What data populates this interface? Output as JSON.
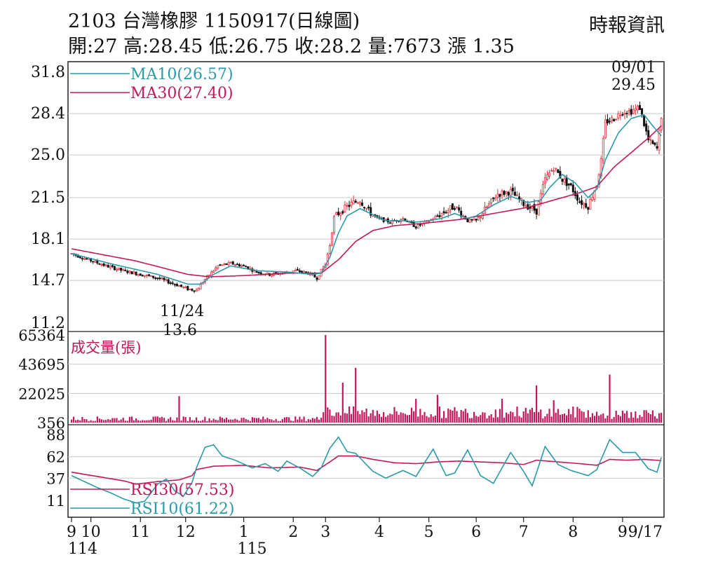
{
  "header": {
    "title": "2103  台灣橡膠 1150917(日線圖)",
    "source": "時報資訊",
    "stats": "開:27 高:28.45 低:26.75 收:28.2 量:7673 漲 1.35"
  },
  "chart_data": [
    {
      "type": "candlestick",
      "panel": "price",
      "yticks": [
        "31.8",
        "28.4",
        "25.0",
        "21.5",
        "18.1",
        "14.7",
        "11.2"
      ],
      "ylim": [
        11.2,
        31.8
      ],
      "grid": true,
      "legend": [
        {
          "name": "MA10(26.57)",
          "color": "#2a9aa8"
        },
        {
          "name": "MA30(27.40)",
          "color": "#c2185b"
        }
      ],
      "annotations": [
        {
          "date": "11/24",
          "value": "13.6",
          "date_label": "11/24",
          "value_label": "13.6"
        },
        {
          "date": "09/01",
          "value": "29.45",
          "date_label": "09/01",
          "value_label": "29.45"
        }
      ],
      "colors": {
        "up": "#e0303a",
        "down": "#111111",
        "ma10": "#2a9aa8",
        "ma30": "#c2185b"
      },
      "anchors": {
        "price": [
          [
            0,
            16.9
          ],
          [
            8,
            16.4
          ],
          [
            16,
            15.9
          ],
          [
            24,
            15.5
          ],
          [
            32,
            15.2
          ],
          [
            40,
            14.9
          ],
          [
            48,
            14.4
          ],
          [
            54,
            14.0
          ],
          [
            58,
            13.9
          ],
          [
            62,
            14.8
          ],
          [
            68,
            15.9
          ],
          [
            74,
            16.1
          ],
          [
            80,
            15.9
          ],
          [
            86,
            15.4
          ],
          [
            92,
            15.2
          ],
          [
            98,
            15.3
          ],
          [
            104,
            15.5
          ],
          [
            110,
            15.3
          ],
          [
            114,
            14.9
          ],
          [
            118,
            16.1
          ],
          [
            120,
            17.6
          ],
          [
            122,
            19.9
          ],
          [
            126,
            20.5
          ],
          [
            130,
            21.0
          ],
          [
            134,
            21.3
          ],
          [
            138,
            20.4
          ],
          [
            142,
            19.8
          ],
          [
            148,
            19.5
          ],
          [
            154,
            19.8
          ],
          [
            160,
            19.1
          ],
          [
            166,
            19.6
          ],
          [
            172,
            20.2
          ],
          [
            178,
            20.8
          ],
          [
            184,
            19.6
          ],
          [
            188,
            19.6
          ],
          [
            192,
            20.5
          ],
          [
            198,
            21.8
          ],
          [
            204,
            22.0
          ],
          [
            210,
            21.0
          ],
          [
            216,
            20.4
          ],
          [
            220,
            23.0
          ],
          [
            224,
            24.0
          ],
          [
            228,
            23.0
          ],
          [
            232,
            22.4
          ],
          [
            236,
            21.2
          ],
          [
            240,
            20.8
          ],
          [
            244,
            22.6
          ],
          [
            246,
            24.5
          ],
          [
            248,
            27.7
          ],
          [
            252,
            28.0
          ],
          [
            256,
            28.6
          ],
          [
            260,
            28.6
          ],
          [
            264,
            28.9
          ],
          [
            268,
            26.2
          ],
          [
            272,
            25.5
          ],
          [
            274,
            28.2
          ]
        ],
        "ma10": [
          [
            0,
            16.9
          ],
          [
            20,
            16.0
          ],
          [
            40,
            15.2
          ],
          [
            54,
            14.4
          ],
          [
            60,
            14.4
          ],
          [
            66,
            15.2
          ],
          [
            74,
            15.9
          ],
          [
            86,
            15.5
          ],
          [
            100,
            15.4
          ],
          [
            112,
            15.2
          ],
          [
            116,
            15.3
          ],
          [
            120,
            16.6
          ],
          [
            124,
            18.6
          ],
          [
            128,
            20.0
          ],
          [
            134,
            20.6
          ],
          [
            140,
            20.1
          ],
          [
            146,
            19.6
          ],
          [
            154,
            19.6
          ],
          [
            160,
            19.5
          ],
          [
            166,
            19.6
          ],
          [
            172,
            19.8
          ],
          [
            178,
            20.2
          ],
          [
            184,
            19.8
          ],
          [
            188,
            20.0
          ],
          [
            196,
            20.9
          ],
          [
            204,
            21.6
          ],
          [
            212,
            21.1
          ],
          [
            218,
            21.3
          ],
          [
            222,
            22.3
          ],
          [
            228,
            23.4
          ],
          [
            234,
            22.7
          ],
          [
            240,
            21.5
          ],
          [
            244,
            22.2
          ],
          [
            248,
            24.6
          ],
          [
            254,
            26.8
          ],
          [
            260,
            28.0
          ],
          [
            266,
            28.3
          ],
          [
            270,
            27.4
          ],
          [
            274,
            26.57
          ]
        ],
        "ma30": [
          [
            0,
            17.3
          ],
          [
            30,
            16.3
          ],
          [
            54,
            15.2
          ],
          [
            64,
            15.0
          ],
          [
            80,
            15.1
          ],
          [
            100,
            15.3
          ],
          [
            116,
            15.3
          ],
          [
            124,
            16.4
          ],
          [
            132,
            17.9
          ],
          [
            140,
            18.8
          ],
          [
            150,
            19.2
          ],
          [
            164,
            19.4
          ],
          [
            180,
            19.7
          ],
          [
            196,
            20.2
          ],
          [
            212,
            20.7
          ],
          [
            224,
            21.3
          ],
          [
            236,
            21.9
          ],
          [
            244,
            22.4
          ],
          [
            252,
            24.0
          ],
          [
            260,
            25.2
          ],
          [
            268,
            26.4
          ],
          [
            274,
            27.4
          ]
        ]
      }
    },
    {
      "type": "bar",
      "panel": "volume",
      "label": "成交量(張)",
      "yticks": [
        "65364",
        "43695",
        "22025",
        "356"
      ],
      "ylim": [
        356,
        65364
      ],
      "peaks": [
        [
          50,
          20000
        ],
        [
          118,
          65364
        ],
        [
          126,
          30000
        ],
        [
          132,
          41000
        ],
        [
          160,
          18000
        ],
        [
          170,
          21000
        ],
        [
          200,
          18000
        ],
        [
          216,
          28000
        ],
        [
          224,
          17000
        ],
        [
          250,
          36000
        ],
        [
          274,
          7673
        ]
      ],
      "color": "#c2185b"
    },
    {
      "type": "line",
      "panel": "rsi",
      "yticks": [
        "88",
        "62",
        "37",
        "11"
      ],
      "ylim": [
        0,
        100
      ],
      "series": [
        {
          "name": "RSI30(57.53)",
          "color": "#c2185b",
          "points": [
            [
              0,
              44
            ],
            [
              12,
              39
            ],
            [
              24,
              34
            ],
            [
              30,
              30
            ],
            [
              40,
              33
            ],
            [
              50,
              35
            ],
            [
              56,
              40
            ],
            [
              58,
              47
            ],
            [
              66,
              51
            ],
            [
              80,
              52
            ],
            [
              92,
              49
            ],
            [
              106,
              50
            ],
            [
              114,
              46
            ],
            [
              120,
              56
            ],
            [
              124,
              63
            ],
            [
              132,
              63
            ],
            [
              140,
              59
            ],
            [
              150,
              55
            ],
            [
              160,
              54
            ],
            [
              170,
              56
            ],
            [
              180,
              57
            ],
            [
              190,
              56
            ],
            [
              200,
              55
            ],
            [
              210,
              53
            ],
            [
              216,
              58
            ],
            [
              226,
              56
            ],
            [
              236,
              54
            ],
            [
              244,
              52
            ],
            [
              250,
              59
            ],
            [
              258,
              58
            ],
            [
              266,
              59
            ],
            [
              274,
              57.53
            ]
          ]
        },
        {
          "name": "RSI10(61.22)",
          "color": "#2a9aa8",
          "points": [
            [
              0,
              40
            ],
            [
              6,
              33
            ],
            [
              12,
              26
            ],
            [
              18,
              20
            ],
            [
              24,
              13
            ],
            [
              30,
              8
            ],
            [
              34,
              10
            ],
            [
              40,
              30
            ],
            [
              44,
              36
            ],
            [
              48,
              22
            ],
            [
              52,
              16
            ],
            [
              56,
              32
            ],
            [
              58,
              49
            ],
            [
              62,
              73
            ],
            [
              66,
              76
            ],
            [
              70,
              63
            ],
            [
              76,
              58
            ],
            [
              84,
              49
            ],
            [
              90,
              54
            ],
            [
              96,
              45
            ],
            [
              100,
              57
            ],
            [
              106,
              49
            ],
            [
              112,
              39
            ],
            [
              116,
              49
            ],
            [
              120,
              72
            ],
            [
              124,
              85
            ],
            [
              128,
              68
            ],
            [
              132,
              66
            ],
            [
              140,
              45
            ],
            [
              146,
              37
            ],
            [
              154,
              46
            ],
            [
              160,
              39
            ],
            [
              168,
              71
            ],
            [
              174,
              40
            ],
            [
              178,
              43
            ],
            [
              184,
              70
            ],
            [
              190,
              40
            ],
            [
              196,
              31
            ],
            [
              204,
              67
            ],
            [
              210,
              45
            ],
            [
              214,
              28
            ],
            [
              220,
              74
            ],
            [
              226,
              53
            ],
            [
              232,
              46
            ],
            [
              236,
              43
            ],
            [
              240,
              40
            ],
            [
              244,
              47
            ],
            [
              250,
              82
            ],
            [
              256,
              67
            ],
            [
              262,
              67
            ],
            [
              268,
              48
            ],
            [
              272,
              44
            ],
            [
              274,
              61.22
            ]
          ]
        }
      ]
    }
  ],
  "xaxis": {
    "ticks": [
      {
        "label": "9",
        "idx": 0
      },
      {
        "label": "10",
        "idx": 9
      },
      {
        "label": "11",
        "idx": 32
      },
      {
        "label": "12",
        "idx": 53
      },
      {
        "label": "1",
        "idx": 80
      },
      {
        "label": "2",
        "idx": 103
      },
      {
        "label": "3",
        "idx": 118
      },
      {
        "label": "4",
        "idx": 143
      },
      {
        "label": "5",
        "idx": 166
      },
      {
        "label": "6",
        "idx": 188
      },
      {
        "label": "7",
        "idx": 210
      },
      {
        "label": "8",
        "idx": 233
      },
      {
        "label": "9",
        "idx": 256
      }
    ],
    "end_label": "9/17",
    "year_labels": [
      {
        "label": "114",
        "idx": 0
      },
      {
        "label": "115",
        "idx": 80
      }
    ]
  }
}
